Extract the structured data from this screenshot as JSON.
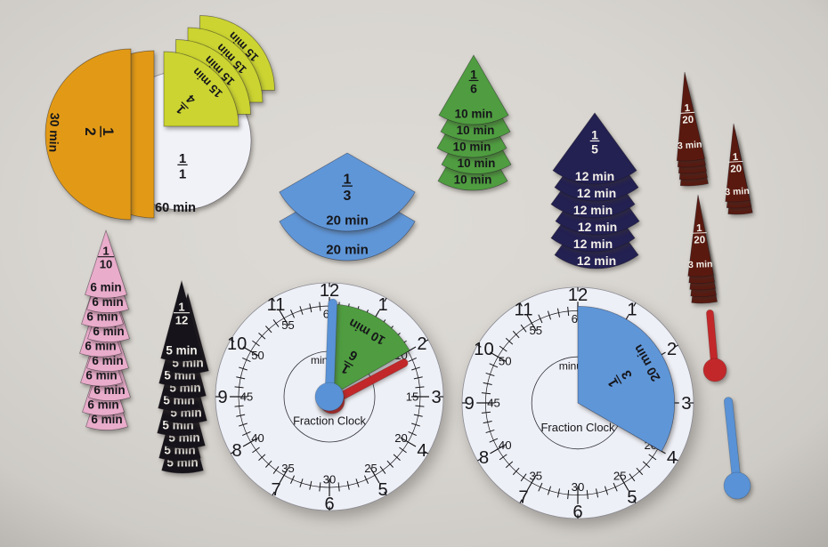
{
  "scene": {
    "description": "Fraction Clock fraction-of-an-hour manipulative pieces on a gray table",
    "background_color": "#d9d6d1",
    "vignette_color": "#b2afaa"
  },
  "palette": {
    "table": "#d9d6d1",
    "face": "#eef0f7",
    "white_piece": "#f1f2f8",
    "orange": "#e29a16",
    "yellow": "#cbd431",
    "blue": "#5f96d8",
    "green": "#4f9d40",
    "navy": "#232052",
    "pink": "#e9accb",
    "black": "#16131a",
    "brown": "#5a190f",
    "red": "#c2282a",
    "hand_blue": "#5992d6",
    "ink_dark": "#16161a",
    "ink_light": "#f2efe9"
  },
  "pieces": {
    "whole": {
      "num": "1",
      "den": "1",
      "minutes": "60 min",
      "count": 1
    },
    "half": {
      "num": "1",
      "den": "2",
      "minutes": "30 min",
      "count": 2
    },
    "quarter": {
      "num": "1",
      "den": "4",
      "minutes": "15 min",
      "count": 4
    },
    "third": {
      "num": "1",
      "den": "3",
      "minutes": "20 min",
      "count": 2
    },
    "fifth": {
      "num": "1",
      "den": "5",
      "minutes": "12 min",
      "count": 6
    },
    "sixth": {
      "num": "1",
      "den": "6",
      "minutes": "10 min",
      "count": 5
    },
    "tenth": {
      "num": "1",
      "den": "10",
      "minutes": "6 min",
      "count": 10
    },
    "twelfth": {
      "num": "1",
      "den": "12",
      "minutes": "5 min",
      "count": 10
    },
    "twentieth": {
      "num": "1",
      "den": "20",
      "minutes": "3 min",
      "count": 13
    }
  },
  "clock": {
    "title": "Fraction Clock",
    "center_word": "minutes",
    "hours": [
      "12",
      "1",
      "2",
      "3",
      "4",
      "5",
      "6",
      "7",
      "8",
      "9",
      "10",
      "11"
    ],
    "minute_numbers": [
      "5",
      "10",
      "15",
      "20",
      "25",
      "30",
      "35",
      "40",
      "45",
      "50",
      "55",
      "60"
    ],
    "left_overlay": {
      "num": "1",
      "den": "6",
      "minutes": "10 min"
    },
    "right_overlay": {
      "num": "1",
      "den": "3",
      "minutes": "20 min"
    }
  }
}
